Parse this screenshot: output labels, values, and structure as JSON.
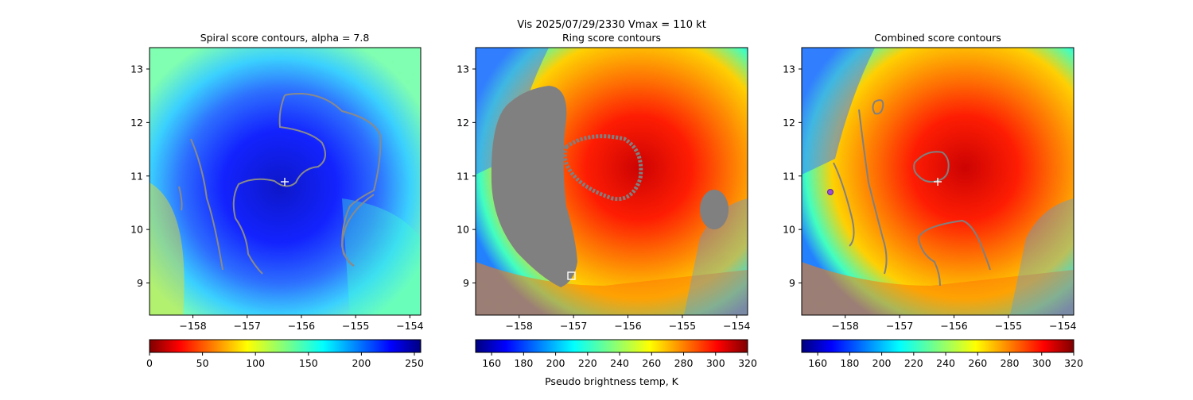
{
  "figure": {
    "suptitle_line": "Vis  2025/07/29/2330    Vmax = 110 kt",
    "colorbar_label": "Pseudo brightness temp, K"
  },
  "chart_data": [
    {
      "type": "heatmap",
      "title": "Spiral score contours, alpha =  7.8",
      "xlabel": "",
      "ylabel": "",
      "xlim": [
        -158.8,
        -153.8
      ],
      "ylim": [
        8.4,
        13.4
      ],
      "xticks": [
        -158,
        -157,
        -156,
        -155,
        -154
      ],
      "yticks": [
        9,
        10,
        11,
        12,
        13
      ],
      "colormap": "jet_r",
      "colorbar": {
        "min": 0,
        "max": 256,
        "ticks": [
          0,
          50,
          100,
          150,
          200,
          250
        ]
      },
      "center_marker": {
        "lon": -156.3,
        "lat": 10.9,
        "symbol": "+",
        "color": "#ffffff"
      },
      "contour_color": "#8a8a8a"
    },
    {
      "type": "heatmap",
      "title": "Ring score contours",
      "xlabel": "",
      "ylabel": "",
      "xlim": [
        -158.8,
        -153.8
      ],
      "ylim": [
        8.4,
        13.4
      ],
      "xticks": [
        -158,
        -157,
        -156,
        -155,
        -154
      ],
      "yticks": [
        9,
        10,
        11,
        12,
        13
      ],
      "colormap": "jet",
      "colorbar": {
        "min": 150,
        "max": 320,
        "ticks": [
          160,
          180,
          200,
          220,
          240,
          260,
          280,
          300,
          320
        ]
      },
      "square_marker": {
        "lon": -157.0,
        "lat": 9.15,
        "symbol": "square",
        "color": "#ffffff"
      },
      "contour_color": "#808080"
    },
    {
      "type": "heatmap",
      "title": "Combined score contours",
      "xlabel": "",
      "ylabel": "",
      "xlim": [
        -158.8,
        -153.8
      ],
      "ylim": [
        8.4,
        13.4
      ],
      "xticks": [
        -158,
        -157,
        -156,
        -155,
        -154
      ],
      "yticks": [
        9,
        10,
        11,
        12,
        13
      ],
      "colormap": "jet",
      "colorbar": {
        "min": 150,
        "max": 320,
        "ticks": [
          160,
          180,
          200,
          220,
          240,
          260,
          280,
          300,
          320
        ]
      },
      "center_marker": {
        "lon": -156.3,
        "lat": 10.9,
        "symbol": "+",
        "color": "#ffffff"
      },
      "circle_marker": {
        "lon": -158.3,
        "lat": 10.7,
        "symbol": "circle",
        "color": "#9040c0"
      },
      "contour_color": "#808080"
    }
  ]
}
